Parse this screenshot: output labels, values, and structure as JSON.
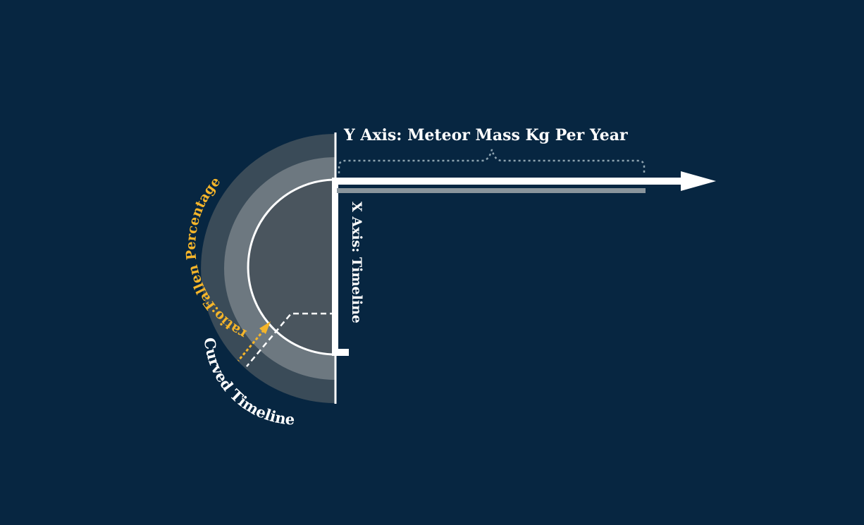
{
  "diagram": {
    "labels": {
      "y_axis": "Y Axis: Meteor Mass Kg Per Year",
      "x_axis": "X Axis: Timeline",
      "ratio": "ratio:Fallen Percentage",
      "curved_timeline": "Curved Timeline"
    },
    "colors": {
      "background": "#072641",
      "outer_band": "#3a4b58",
      "middle_band": "#6d7880",
      "inner_disc": "#4a555e",
      "axis_white": "#ffffff",
      "y_bar": "#8a959c",
      "accent_yellow": "#f5b52a",
      "dotted_brace": "#8ea3b0"
    }
  }
}
